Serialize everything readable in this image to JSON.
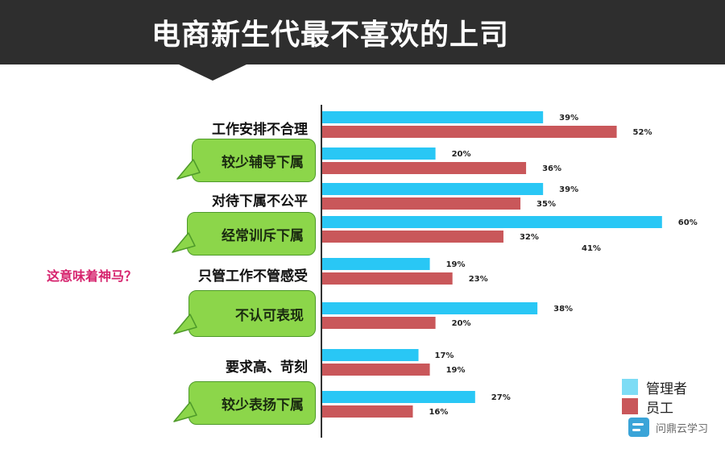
{
  "title": "电商新生代最不喜欢的上司",
  "question": "这意味着神马？",
  "watermark": "问鼎云学习",
  "stray_label": "41%",
  "colors": {
    "manager": "#29c7f5",
    "employee": "#c9575a",
    "legend_manager": "#7ddcf5",
    "bubble": "#8cd64a"
  },
  "chart_data": {
    "type": "bar",
    "orientation": "horizontal",
    "categories": [
      "工作安排不合理",
      "较少辅导下属",
      "对待下属不公平",
      "经常训斥下属",
      "只管工作不管感受",
      "不认可表现",
      "要求高、苛刻",
      "较少表扬下属"
    ],
    "highlighted": [
      false,
      true,
      false,
      true,
      false,
      true,
      false,
      true
    ],
    "series": [
      {
        "name": "管理者",
        "values": [
          39,
          20,
          39,
          60,
          19,
          38,
          17,
          27
        ],
        "labels": [
          "39%",
          "20%",
          "39%",
          "60%",
          "19%",
          "38%",
          "17%",
          "27%"
        ]
      },
      {
        "name": "员工",
        "values": [
          52,
          36,
          35,
          32,
          23,
          20,
          19,
          16
        ],
        "labels": [
          "52%",
          "36%",
          "35%",
          "32%",
          "23%",
          "20%",
          "19%",
          "16%"
        ]
      }
    ],
    "xlim": [
      0,
      60
    ],
    "title": "",
    "xlabel": "",
    "ylabel": "",
    "legend": "bottom-right"
  }
}
